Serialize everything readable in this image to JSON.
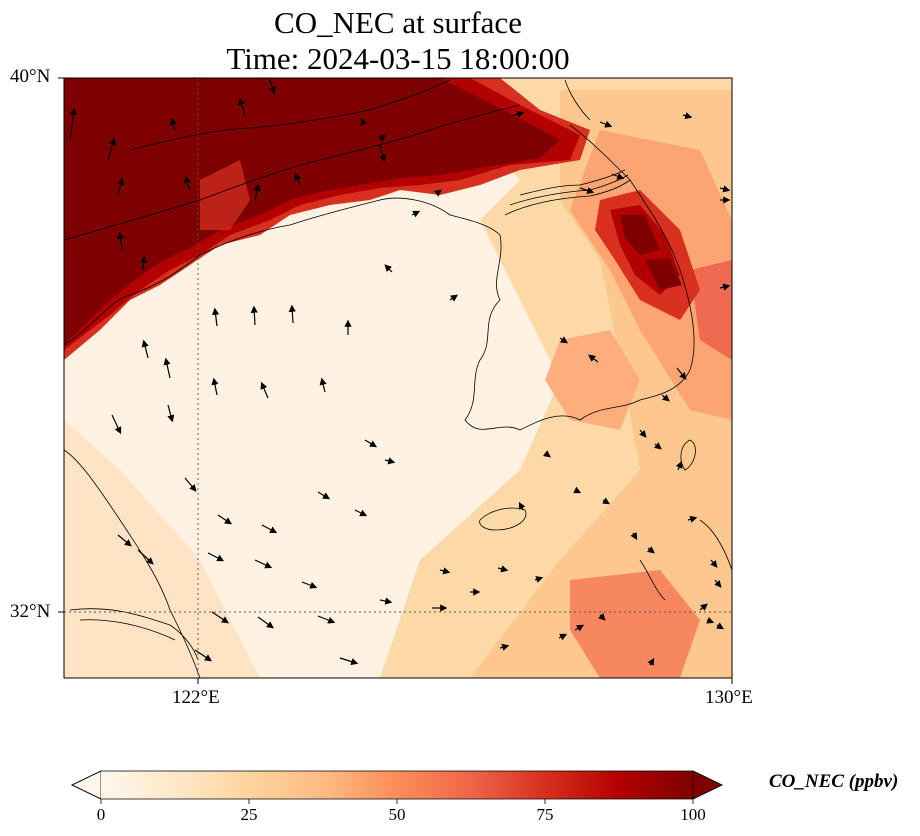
{
  "title": {
    "line1": "CO_NEC at surface",
    "line2": "Time: 2024-03-15 18:00:00"
  },
  "map": {
    "extent": {
      "lon": [
        119.6,
        130.0
      ],
      "lat": [
        31.0,
        40.0
      ]
    },
    "gridlines": {
      "lon": [
        122
      ],
      "lat": [
        32
      ],
      "style": "dotted"
    },
    "lat_ticks": [
      "40°N",
      "32°N"
    ],
    "lon_ticks": [
      "122°E",
      "130°E"
    ],
    "field_name": "CO_NEC",
    "vectors": "wind arrows",
    "colormap": "OrRd"
  },
  "colorbar": {
    "label": "CO_NEC (ppbv)",
    "ticks": [
      "0",
      "25",
      "50",
      "75",
      "100"
    ],
    "min": 0,
    "max": 100,
    "extend": "both",
    "colors": [
      "#fff7ec",
      "#fee8c8",
      "#fdd49e",
      "#fdbb84",
      "#fc8d59",
      "#ef6548",
      "#d7301f",
      "#b30000",
      "#7f0000"
    ]
  }
}
